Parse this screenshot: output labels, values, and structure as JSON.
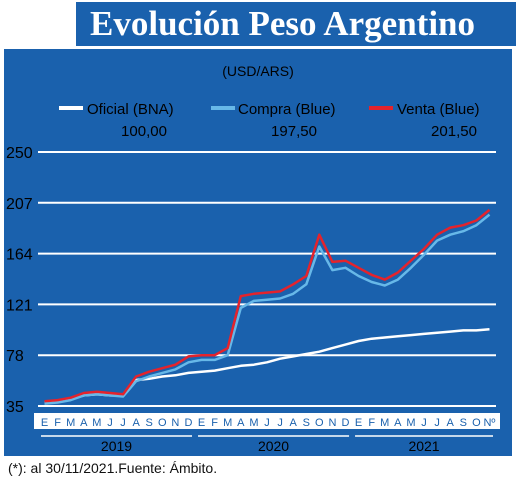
{
  "title": "Evolución Peso Argentino",
  "footnote": "(*): al 30/11/2021.Fuente: Ámbito.",
  "colors": {
    "background": "#1a61ad",
    "oficial": "#ffffff",
    "compra": "#67b8e8",
    "venta": "#e4232c"
  },
  "chart_data": {
    "type": "line",
    "unit_label": "(USD/ARS)",
    "y_ticks": [
      "250",
      "207",
      "164",
      "121",
      "78",
      "35"
    ],
    "ylim": [
      35,
      250
    ],
    "grid": true,
    "legend_position": "top",
    "month_labels": [
      "E",
      "F",
      "M",
      "A",
      "M",
      "J",
      "J",
      "A",
      "S",
      "O",
      "N",
      "D",
      "E",
      "F",
      "M",
      "A",
      "M",
      "J",
      "J",
      "A",
      "S",
      "O",
      "N",
      "D",
      "E",
      "F",
      "M",
      "A",
      "M",
      "J",
      "J",
      "A",
      "S",
      "O",
      "Nº"
    ],
    "years": [
      "2019",
      "2020",
      "2021"
    ],
    "x": [
      "2019-01",
      "2019-02",
      "2019-03",
      "2019-04",
      "2019-05",
      "2019-06",
      "2019-07",
      "2019-08",
      "2019-09",
      "2019-10",
      "2019-11",
      "2019-12",
      "2020-01",
      "2020-02",
      "2020-03",
      "2020-04",
      "2020-05",
      "2020-06",
      "2020-07",
      "2020-08",
      "2020-09",
      "2020-10",
      "2020-11",
      "2020-12",
      "2021-01",
      "2021-02",
      "2021-03",
      "2021-04",
      "2021-05",
      "2021-06",
      "2021-07",
      "2021-08",
      "2021-09",
      "2021-10",
      "2021-11"
    ],
    "series": [
      {
        "name": "Oficial (BNA)",
        "last_value": "100,00",
        "values": [
          38,
          39,
          41,
          44,
          45,
          44,
          44,
          57,
          58,
          60,
          61,
          63,
          64,
          65,
          67,
          69,
          70,
          72,
          75,
          77,
          79,
          81,
          84,
          87,
          90,
          92,
          93,
          94,
          95,
          96,
          97,
          98,
          99,
          99,
          100
        ]
      },
      {
        "name": "Compra (Blue)",
        "last_value": "197,50",
        "values": [
          37,
          38,
          40,
          44,
          45,
          44,
          43,
          56,
          60,
          63,
          66,
          72,
          74,
          74,
          78,
          118,
          124,
          125,
          126,
          130,
          138,
          170,
          150,
          152,
          145,
          140,
          137,
          142,
          152,
          163,
          175,
          180,
          183,
          188,
          197
        ]
      },
      {
        "name": "Venta (Blue)",
        "last_value": "201,50",
        "values": [
          39,
          40,
          42,
          46,
          47,
          46,
          45,
          60,
          64,
          67,
          70,
          77,
          78,
          78,
          84,
          128,
          130,
          131,
          132,
          138,
          145,
          180,
          157,
          158,
          152,
          146,
          142,
          148,
          158,
          168,
          180,
          186,
          188,
          192,
          201
        ]
      }
    ]
  }
}
